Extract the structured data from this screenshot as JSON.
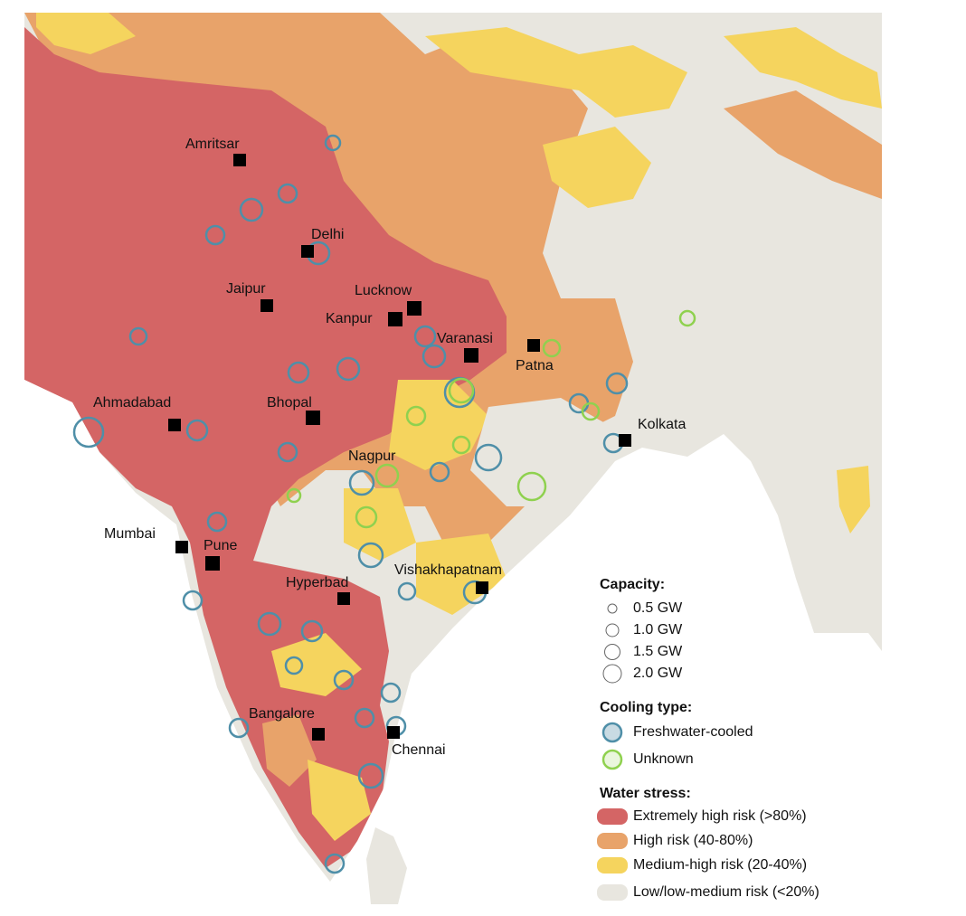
{
  "map": {
    "cities": [
      "Amritsar",
      "Delhi",
      "Jaipur",
      "Lucknow",
      "Kanpur",
      "Varanasi",
      "Patna",
      "Ahmadabad",
      "Bhopal",
      "Kolkata",
      "Nagpur",
      "Mumbai",
      "Pune",
      "Hyperbad",
      "Vishakhapatnam",
      "Bangalore",
      "Chennai"
    ]
  },
  "legend": {
    "capacity": {
      "title": "Capacity:",
      "items": [
        "0.5 GW",
        "1.0 GW",
        "1.5 GW",
        "2.0 GW"
      ]
    },
    "cooling": {
      "title": "Cooling type:",
      "items": [
        "Freshwater-cooled",
        "Unknown"
      ]
    },
    "water_stress": {
      "title": "Water stress:",
      "items": [
        "Extremely high risk (>80%)",
        "High risk (40-80%)",
        "Medium-high risk (20-40%)",
        "Low/low-medium risk (<20%)"
      ]
    }
  }
}
